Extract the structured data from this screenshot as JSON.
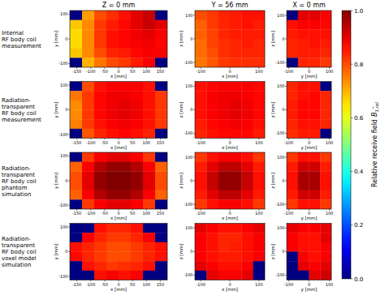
{
  "chart_data": {
    "type": "heatmap",
    "columns": [
      {
        "title": "Z = 0 mm",
        "x_label": "x [mm]",
        "y_label": "y [mm]",
        "xlim": [
          -175,
          175
        ],
        "ylim": [
          -115,
          115
        ],
        "xticks": [
          -150,
          -100,
          -50,
          0,
          50,
          100,
          150
        ],
        "yticks": [
          -100,
          0,
          100
        ]
      },
      {
        "title": "Y = 56 mm",
        "x_label": "x [mm]",
        "y_label": "z [mm]",
        "xlim": [
          -120,
          120
        ],
        "ylim": [
          -120,
          120
        ],
        "xticks": [
          -100,
          0,
          100
        ],
        "yticks": [
          -100,
          0,
          100
        ]
      },
      {
        "title": "X = 0 mm",
        "x_label": "y [mm]",
        "y_label": "z [mm]",
        "xlim": [
          -110,
          110
        ],
        "ylim": [
          -120,
          120
        ],
        "xticks": [
          -100,
          0,
          100
        ],
        "yticks": [
          -100,
          0,
          100
        ]
      }
    ],
    "rows": [
      {
        "label": [
          "Internal",
          "RF body coil",
          "measurement"
        ],
        "cells": [
          [
            [
              0,
              0.72,
              0.8,
              0.83,
              0.86,
              0.9,
              0.93,
              0
            ],
            [
              0.68,
              0.74,
              0.82,
              0.85,
              0.87,
              0.9,
              0.93,
              0.9
            ],
            [
              0.66,
              0.74,
              0.82,
              0.86,
              0.87,
              0.89,
              0.9,
              0.88
            ],
            [
              0.66,
              0.74,
              0.82,
              0.86,
              0.87,
              0.88,
              0.89,
              0.87
            ],
            [
              0.68,
              0.74,
              0.8,
              0.84,
              0.85,
              0.87,
              0.88,
              0.88
            ],
            [
              0,
              0.7,
              0.76,
              0.8,
              0.82,
              0.85,
              0.88,
              0
            ]
          ],
          [
            [
              0.8,
              0.82,
              0.84,
              0.85,
              0.86,
              0.86
            ],
            [
              0.78,
              0.82,
              0.84,
              0.85,
              0.86,
              0.85
            ],
            [
              0.78,
              0.81,
              0.84,
              0.85,
              0.85,
              0.85
            ],
            [
              0.77,
              0.81,
              0.83,
              0.84,
              0.85,
              0.84
            ],
            [
              0.77,
              0.8,
              0.83,
              0.84,
              0.84,
              0.84
            ],
            [
              0.76,
              0.79,
              0.82,
              0.83,
              0.83,
              0.83
            ]
          ],
          [
            [
              0,
              0.9,
              0.9,
              0.88
            ],
            [
              0.86,
              0.88,
              0.88,
              0.87
            ],
            [
              0.85,
              0.86,
              0.86,
              0.86
            ],
            [
              0.84,
              0.85,
              0.86,
              0.85
            ],
            [
              0.84,
              0.85,
              0.85,
              0.84
            ],
            [
              0,
              0.84,
              0.84,
              0.82
            ]
          ]
        ]
      },
      {
        "label": [
          "Radiation-",
          "transparent",
          "RF body coil",
          "measurement"
        ],
        "cells": [
          [
            [
              0,
              0.8,
              0.86,
              0.88,
              0.88,
              0.88,
              0.86,
              0
            ],
            [
              0.76,
              0.82,
              0.87,
              0.89,
              0.89,
              0.88,
              0.86,
              0.82
            ],
            [
              0.74,
              0.82,
              0.87,
              0.89,
              0.9,
              0.89,
              0.86,
              0.82
            ],
            [
              0.74,
              0.82,
              0.87,
              0.89,
              0.9,
              0.89,
              0.86,
              0.82
            ],
            [
              0.75,
              0.82,
              0.86,
              0.88,
              0.89,
              0.88,
              0.86,
              0.82
            ],
            [
              0,
              0.79,
              0.84,
              0.86,
              0.87,
              0.86,
              0.84,
              0
            ]
          ],
          [
            [
              0.86,
              0.87,
              0.88,
              0.88,
              0.88,
              0.87
            ],
            [
              0.86,
              0.88,
              0.89,
              0.89,
              0.88,
              0.87
            ],
            [
              0.86,
              0.88,
              0.89,
              0.9,
              0.89,
              0.87
            ],
            [
              0.86,
              0.88,
              0.89,
              0.9,
              0.89,
              0.87
            ],
            [
              0.85,
              0.87,
              0.88,
              0.89,
              0.88,
              0.86
            ],
            [
              0.84,
              0.86,
              0.87,
              0.87,
              0.87,
              0.85
            ]
          ],
          [
            [
              0.84,
              0.86,
              0.86,
              0
            ],
            [
              0.84,
              0.86,
              0.87,
              0.84
            ],
            [
              0.85,
              0.87,
              0.87,
              0.84
            ],
            [
              0.85,
              0.87,
              0.87,
              0.84
            ],
            [
              0.84,
              0.86,
              0.86,
              0.84
            ],
            [
              0.83,
              0.85,
              0.85,
              0
            ]
          ]
        ]
      },
      {
        "label": [
          "Radiation-",
          "transparent",
          "RF body coil",
          "phantom",
          "simulation"
        ],
        "cells": [
          [
            [
              0,
              0.82,
              0.88,
              0.9,
              0.9,
              0.88,
              0.82,
              0
            ],
            [
              0.78,
              0.88,
              0.95,
              0.98,
              0.98,
              0.95,
              0.88,
              0.78
            ],
            [
              0.8,
              0.9,
              0.98,
              1.0,
              1.0,
              0.98,
              0.9,
              0.8
            ],
            [
              0.8,
              0.9,
              0.98,
              1.0,
              1.0,
              0.98,
              0.9,
              0.8
            ],
            [
              0.78,
              0.88,
              0.95,
              0.98,
              0.98,
              0.95,
              0.88,
              0.78
            ],
            [
              0,
              0.82,
              0.88,
              0.9,
              0.9,
              0.88,
              0.82,
              0
            ]
          ],
          [
            [
              0.82,
              0.86,
              0.88,
              0.88,
              0.86,
              0.82
            ],
            [
              0.85,
              0.9,
              0.94,
              0.94,
              0.9,
              0.85
            ],
            [
              0.86,
              0.93,
              0.98,
              0.98,
              0.93,
              0.86
            ],
            [
              0.86,
              0.93,
              0.98,
              0.98,
              0.93,
              0.86
            ],
            [
              0.85,
              0.9,
              0.94,
              0.94,
              0.9,
              0.85
            ],
            [
              0.82,
              0.86,
              0.88,
              0.88,
              0.86,
              0.82
            ]
          ],
          [
            [
              0.82,
              0.86,
              0.86,
              0.82
            ],
            [
              0.85,
              0.92,
              0.92,
              0.85
            ],
            [
              0.86,
              0.96,
              0.96,
              0.86
            ],
            [
              0.86,
              0.96,
              0.96,
              0.86
            ],
            [
              0.85,
              0.92,
              0.92,
              0.85
            ],
            [
              0.82,
              0.86,
              0.86,
              0.82
            ]
          ]
        ]
      },
      {
        "label": [
          "Radiation-",
          "transparent",
          "RF body coil",
          "voxel model",
          "simulation"
        ],
        "cells": [
          [
            [
              0,
              0,
              0.86,
              0.84,
              0.84,
              0.86,
              0,
              0
            ],
            [
              0,
              0.88,
              0.84,
              0.82,
              0.82,
              0.84,
              0.88,
              0
            ],
            [
              0.86,
              0.84,
              0.82,
              0.8,
              0.8,
              0.82,
              0.84,
              0.86
            ],
            [
              0.87,
              0.84,
              0.82,
              0.8,
              0.8,
              0.82,
              0.84,
              0.86
            ],
            [
              0,
              0.86,
              0.84,
              0.82,
              0.83,
              0.84,
              0.86,
              0
            ],
            [
              0,
              0,
              0.86,
              0.88,
              0.86,
              0.88,
              0,
              0
            ]
          ],
          [
            [
              0.9,
              0.88,
              0.86,
              0.86,
              0.88,
              0.9
            ],
            [
              0.88,
              0.86,
              0.84,
              0.84,
              0.86,
              0.88
            ],
            [
              0.88,
              0.86,
              0.84,
              0.85,
              0.86,
              0.88
            ],
            [
              0.88,
              0.86,
              0.85,
              0.85,
              0.86,
              0.88
            ],
            [
              0.9,
              0.88,
              0.86,
              0.86,
              0.88,
              0
            ],
            [
              0,
              0.9,
              0.88,
              0.88,
              0.9,
              0
            ]
          ],
          [
            [
              0.9,
              0.88,
              0.88,
              0.9
            ],
            [
              0.88,
              0.86,
              0.86,
              0.9
            ],
            [
              0.88,
              0.86,
              0.86,
              0.88
            ],
            [
              0,
              0.88,
              0.86,
              0.88
            ],
            [
              0,
              0.9,
              0.88,
              0.9
            ],
            [
              0,
              0,
              0.9,
              0.92
            ]
          ]
        ]
      }
    ],
    "color_range": [
      0,
      1
    ],
    "color_ticks": [
      {
        "value": 0,
        "label": "0.0"
      },
      {
        "value": 0.2,
        "label": "0.2"
      },
      {
        "value": 0.4,
        "label": "0.4"
      },
      {
        "value": 0.6,
        "label": "0.6"
      },
      {
        "value": 0.8,
        "label": "0.8"
      },
      {
        "value": 1.0,
        "label": "1.0"
      }
    ],
    "colorbar_label": {
      "text": "Relative receive field",
      "symbol": "B",
      "subscript": "1,rel",
      "superscript": "−"
    }
  }
}
